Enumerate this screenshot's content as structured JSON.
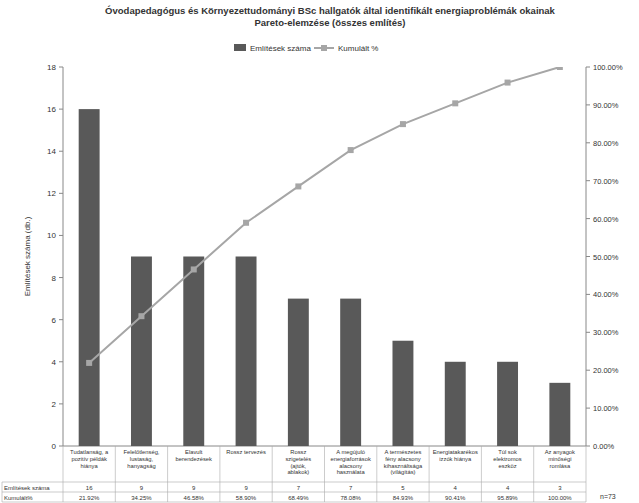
{
  "chart_data": {
    "type": "bar",
    "title": "Óvodapedagógus és Környezettudományi BSc hallgatók által identifikált energiaproblémák okainak Pareto-elemzése (összes említés)",
    "y_label": "Említések száma (db.)",
    "categories": [
      "Tudatlanság, a pozitív példák hiánya",
      "Felelőtlenség, lustaság, hanyagság",
      "Elavult berendezések",
      "Rossz tervezés",
      "Rossz szigetelés (ajtók, ablakok)",
      "A megújuló energiaforrások alacsony használata",
      "A természetes fény alacsony kihasználtsága (világítás)",
      "Energiatakarékos izzók hiánya",
      "Túl sok elektromos eszköz",
      "Az anyagok minőségi romlása"
    ],
    "series": [
      {
        "name": "Említések száma",
        "type": "bar",
        "color": "#595959",
        "values": [
          16,
          9,
          9,
          9,
          7,
          7,
          5,
          4,
          4,
          3
        ],
        "data_labels": true
      },
      {
        "name": "Kumulált %",
        "type": "line",
        "color": "#a6a6a6",
        "marker": "square",
        "axis": "y2",
        "values": [
          21.92,
          34.25,
          46.58,
          58.9,
          68.49,
          78.08,
          84.93,
          90.41,
          95.89,
          100
        ],
        "value_labels": [
          "21.92%",
          "34.25%",
          "46.58%",
          "58.90%",
          "68.49%",
          "78.08%",
          "84.93%",
          "90.41%",
          "95.89%",
          "100.00%"
        ],
        "data_labels": true
      }
    ],
    "ylim": [
      0,
      18
    ],
    "yticks": [
      0,
      2,
      4,
      6,
      8,
      10,
      12,
      14,
      16,
      18
    ],
    "y2lim": [
      0,
      100
    ],
    "y2ticks": [
      {
        "value": 0,
        "label": "0.00%"
      },
      {
        "value": 10,
        "label": "10.00%"
      },
      {
        "value": 20,
        "label": "20.00%"
      },
      {
        "value": 30,
        "label": "30.00%"
      },
      {
        "value": 40,
        "label": "40.00%"
      },
      {
        "value": 50,
        "label": "50.00%"
      },
      {
        "value": 60,
        "label": "60.00%"
      },
      {
        "value": 70,
        "label": "70.00%"
      },
      {
        "value": 80,
        "label": "80.00%"
      },
      {
        "value": 90,
        "label": "90.00%"
      },
      {
        "value": 100,
        "label": "100.00%"
      }
    ],
    "grid": false,
    "legend": "top",
    "table_row_labels": [
      "Említések száma",
      "Kumulált%"
    ],
    "annotation": "n=73"
  }
}
